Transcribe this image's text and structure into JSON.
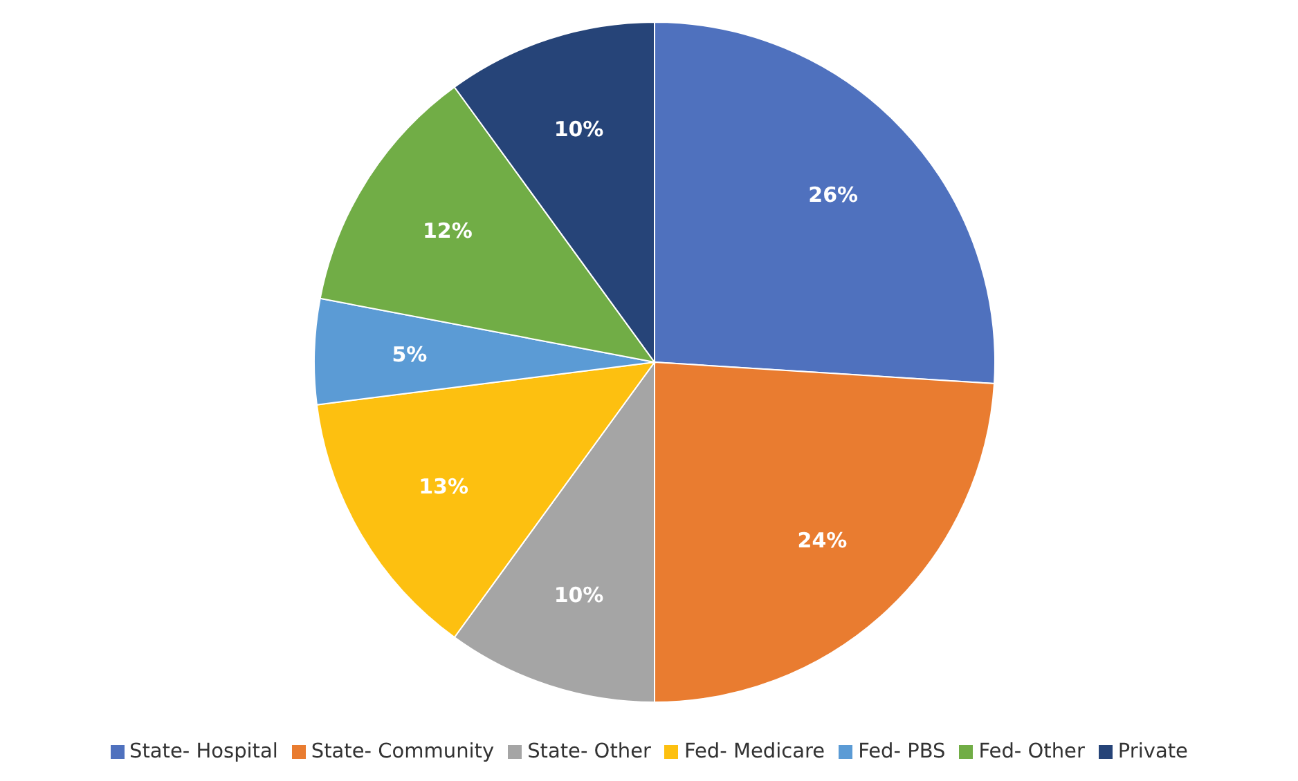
{
  "chart_data": {
    "type": "pie",
    "categories": [
      "State- Hospital",
      "State- Community",
      "State- Other",
      "Fed- Medicare",
      "Fed- PBS",
      "Fed- Other",
      "Private"
    ],
    "values": [
      26,
      24,
      10,
      13,
      5,
      12,
      10
    ],
    "colors": [
      "#4f71be",
      "#e97c30",
      "#a5a5a5",
      "#fdc010",
      "#5b9bd5",
      "#71ad46",
      "#264478"
    ],
    "value_labels": [
      "26%",
      "24%",
      "10%",
      "13%",
      "5%",
      "12%",
      "10%"
    ],
    "legend": "bottom"
  }
}
